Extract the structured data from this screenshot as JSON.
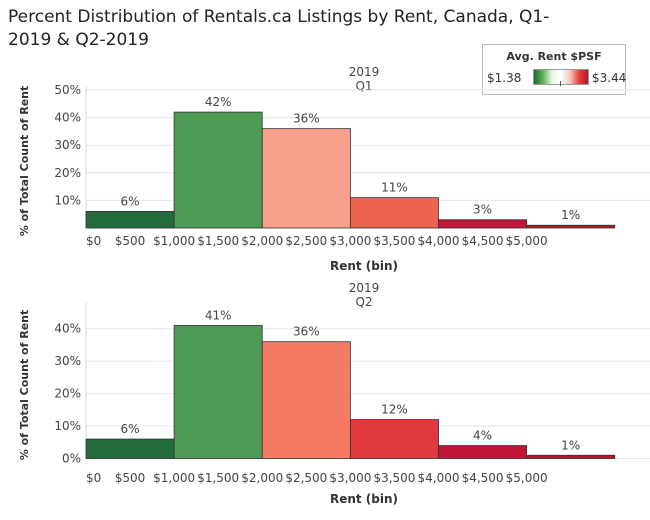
{
  "title": "Percent Distribution of Rentals.ca Listings by Rent, Canada, Q1-2019 & Q2-2019",
  "legend": {
    "title": "Avg. Rent $PSF",
    "min_label": "$1.38",
    "max_label": "$3.44",
    "colors": [
      "#1f6b35",
      "#5fb35a",
      "#ffffff",
      "#e8403a",
      "#b2182b"
    ]
  },
  "chart_data": [
    {
      "type": "bar",
      "header_year": "2019",
      "header_quarter": "Q1",
      "xlabel": "Rent (bin)",
      "ylabel": "% of Total Count of Rent",
      "x_tick_labels": [
        "$0",
        "$500",
        "$1,000",
        "$1,500",
        "$2,000",
        "$2,500",
        "$3,000",
        "$3,500",
        "$4,000",
        "$4,500",
        "$5,000"
      ],
      "y_tick_labels": [
        "10%",
        "20%",
        "30%",
        "40%",
        "50%"
      ],
      "ylim": [
        0,
        50
      ],
      "bins": [
        {
          "start": 0,
          "end": 1000,
          "value": 6,
          "label": "6%",
          "color": "#236b3a"
        },
        {
          "start": 1000,
          "end": 2000,
          "value": 42,
          "label": "42%",
          "color": "#4f9a55"
        },
        {
          "start": 2000,
          "end": 3000,
          "value": 36,
          "label": "36%",
          "color": "#f7a08b"
        },
        {
          "start": 3000,
          "end": 4000,
          "value": 11,
          "label": "11%",
          "color": "#ee6350"
        },
        {
          "start": 4000,
          "end": 5000,
          "value": 3,
          "label": "3%",
          "color": "#bf1735"
        },
        {
          "start": 5000,
          "end": 6000,
          "value": 1,
          "label": "1%",
          "color": "#b2182b"
        }
      ]
    },
    {
      "type": "bar",
      "header_year": "2019",
      "header_quarter": "Q2",
      "xlabel": "Rent (bin)",
      "ylabel": "% of Total Count of Rent",
      "x_tick_labels": [
        "$0",
        "$500",
        "$1,000",
        "$1,500",
        "$2,000",
        "$2,500",
        "$3,000",
        "$3,500",
        "$4,000",
        "$4,500",
        "$5,000"
      ],
      "y_tick_labels": [
        "0%",
        "10%",
        "20%",
        "30%",
        "40%"
      ],
      "ylim": [
        -2,
        47
      ],
      "bins": [
        {
          "start": 0,
          "end": 1000,
          "value": 6,
          "label": "6%",
          "color": "#236b3a"
        },
        {
          "start": 1000,
          "end": 2000,
          "value": 41,
          "label": "41%",
          "color": "#4f9a55"
        },
        {
          "start": 2000,
          "end": 3000,
          "value": 36,
          "label": "36%",
          "color": "#f47a64"
        },
        {
          "start": 3000,
          "end": 4000,
          "value": 12,
          "label": "12%",
          "color": "#e03a3e"
        },
        {
          "start": 4000,
          "end": 5000,
          "value": 4,
          "label": "4%",
          "color": "#bf1735"
        },
        {
          "start": 5000,
          "end": 6000,
          "value": 1,
          "label": "1%",
          "color": "#b2182b"
        }
      ]
    }
  ]
}
